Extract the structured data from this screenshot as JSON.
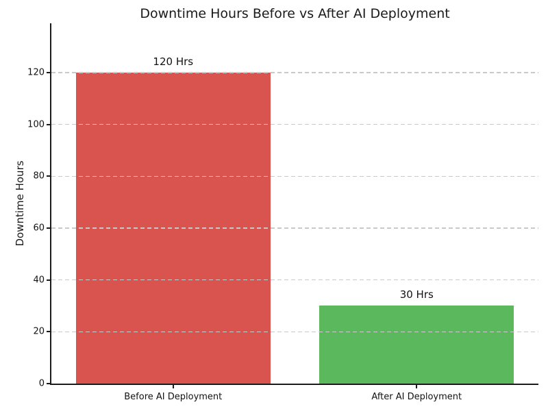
{
  "chart_data": {
    "type": "bar",
    "title": "Downtime Hours Before vs After AI Deployment",
    "xlabel": "",
    "ylabel": "Downtime Hours",
    "categories": [
      "Before AI Deployment",
      "After AI Deployment"
    ],
    "values": [
      120,
      30
    ],
    "bar_labels": [
      "120 Hrs",
      "30 Hrs"
    ],
    "bar_colors": [
      "#d9534f",
      "#5cb85c"
    ],
    "yticks": [
      0,
      20,
      40,
      60,
      80,
      100,
      120
    ],
    "ylim": [
      0,
      139
    ],
    "bar_width_fraction": 0.8,
    "grid": {
      "axis": "y",
      "style": "dashed",
      "color": "#c9c9c9",
      "above_bars": true
    },
    "legend": "none",
    "background_color": "#ffffff",
    "spine_color": "#1a1a1a",
    "text_color": "#1a1a1a"
  }
}
